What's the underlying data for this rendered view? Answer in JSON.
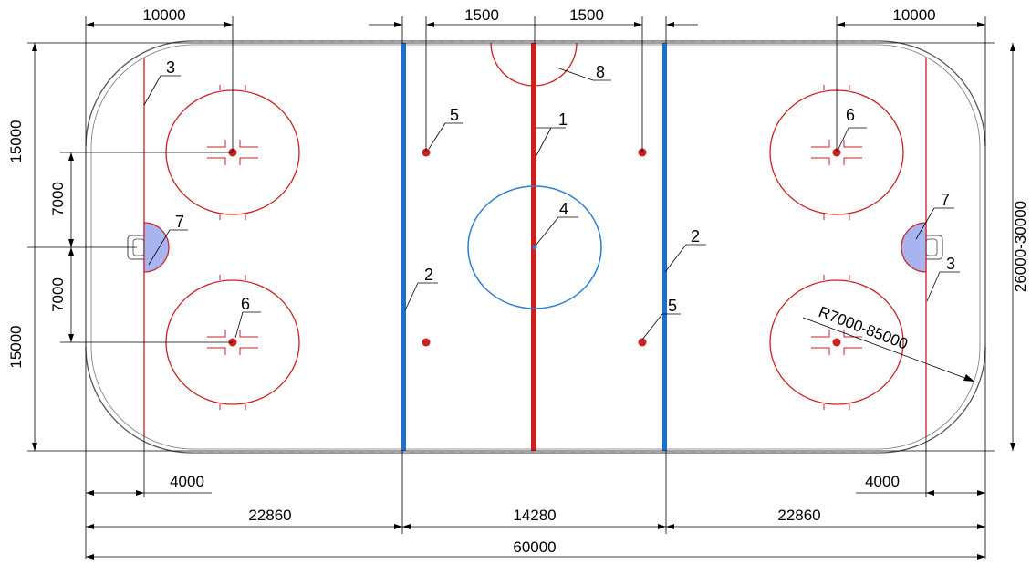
{
  "dimensions_top": {
    "left_end": "10000",
    "left_spot": "1500",
    "right_spot": "1500",
    "right_end": "10000"
  },
  "dimensions_left": {
    "upper": "15000",
    "upper_inner": "7000",
    "lower_inner": "7000",
    "lower": "15000"
  },
  "dimensions_right": {
    "width": "26000-30000",
    "corner_radius": "R7000-85000"
  },
  "dimensions_bottom": {
    "left_goal": "4000",
    "right_goal": "4000",
    "left_zone": "22860",
    "neutral_zone": "14280",
    "right_zone": "22860",
    "total_length": "60000"
  },
  "callouts": {
    "center_line": "1",
    "blue_line_left": "2",
    "blue_line_right": "2",
    "goal_line_left": "3",
    "goal_line_right": "3",
    "center_circle": "4",
    "neutral_spot_upper": "5",
    "neutral_spot_lower": "5",
    "faceoff_spot_right": "6",
    "faceoff_spot_left": "6",
    "crease_left": "7",
    "crease_right": "7",
    "referee_crease": "8"
  },
  "colors": {
    "red_line": "#cc1f1f",
    "blue_line": "#1a6fd1",
    "center_circle": "#2a7fd4",
    "crease_fill": "#a8b4f0",
    "boards": "#555555"
  }
}
